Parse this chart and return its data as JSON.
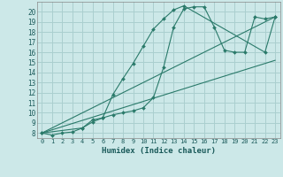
{
  "xlabel": "Humidex (Indice chaleur)",
  "bg_color": "#cce8e8",
  "line_color": "#2a7a6a",
  "grid_color": "#aacfcf",
  "xlim": [
    -0.5,
    23.5
  ],
  "ylim": [
    7.5,
    21.0
  ],
  "yticks": [
    8,
    9,
    10,
    11,
    12,
    13,
    14,
    15,
    16,
    17,
    18,
    19,
    20
  ],
  "xticks": [
    0,
    1,
    2,
    3,
    4,
    5,
    6,
    7,
    8,
    9,
    10,
    11,
    12,
    13,
    14,
    15,
    16,
    17,
    18,
    19,
    20,
    21,
    22,
    23
  ],
  "series": [
    {
      "x": [
        0,
        1,
        2,
        3,
        4,
        5,
        6,
        7,
        8,
        9,
        10,
        11,
        12,
        13,
        14,
        15,
        16,
        17,
        18,
        19,
        20,
        21,
        22,
        23
      ],
      "y": [
        8.0,
        7.8,
        8.0,
        8.1,
        8.5,
        9.3,
        9.5,
        9.8,
        10.0,
        10.2,
        10.5,
        11.5,
        14.5,
        18.5,
        20.3,
        20.5,
        20.5,
        18.5,
        16.2,
        16.0,
        16.0,
        19.5,
        19.3,
        19.5
      ],
      "has_markers": true
    },
    {
      "x": [
        0,
        4,
        5,
        6,
        7,
        8,
        9,
        10,
        11,
        12,
        13,
        14,
        22,
        23
      ],
      "y": [
        8.0,
        8.5,
        9.1,
        9.5,
        11.8,
        13.4,
        14.9,
        16.6,
        18.3,
        19.3,
        20.2,
        20.6,
        16.0,
        19.5
      ],
      "has_markers": true
    },
    {
      "x": [
        0,
        23
      ],
      "y": [
        8.0,
        19.5
      ],
      "has_markers": false
    },
    {
      "x": [
        0,
        23
      ],
      "y": [
        8.0,
        15.2
      ],
      "has_markers": false
    }
  ]
}
